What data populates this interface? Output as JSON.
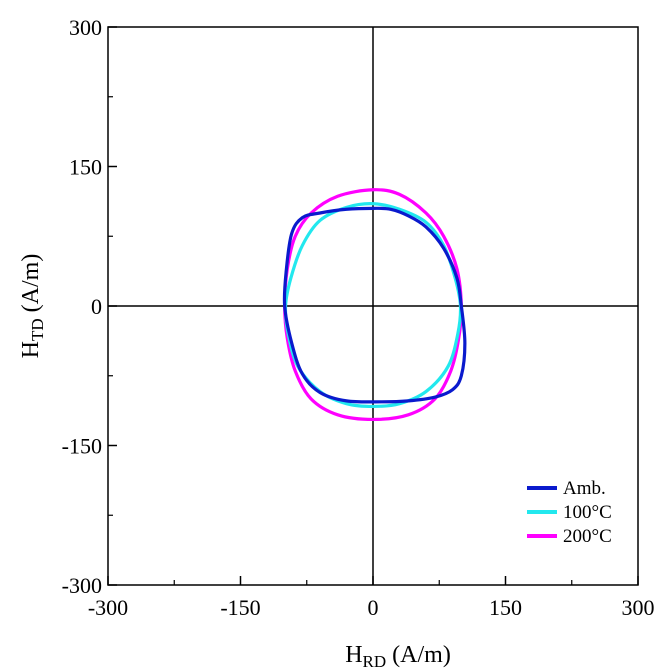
{
  "chart_data": {
    "type": "line",
    "xlabel": {
      "main": "H",
      "sub": "RD",
      "unit": " (A/m)"
    },
    "ylabel": {
      "main": "H",
      "sub": "TD",
      "unit": " (A/m)"
    },
    "xlim": [
      -300,
      300
    ],
    "ylim": [
      -300,
      300
    ],
    "x_ticks": [
      -300,
      -150,
      0,
      150,
      300
    ],
    "y_ticks": [
      300,
      150,
      0,
      -150,
      -300
    ],
    "x_tick_labels": [
      "-300",
      "-150",
      "0",
      "150",
      "300"
    ],
    "y_tick_labels": [
      "300",
      "150",
      "0",
      "-150",
      "-300"
    ],
    "grid": false,
    "zero_lines": true,
    "legend_position": "bottom-right",
    "series": [
      {
        "name": "200°C",
        "color": "#ff00ff",
        "x": [
          0,
          30,
          60,
          80,
          95,
          100,
          97,
          88,
          70,
          40,
          0,
          -40,
          -70,
          -88,
          -97,
          -100,
          -97,
          -88,
          -70,
          -40,
          0
        ],
        "y": [
          125,
          120,
          100,
          75,
          40,
          0,
          -35,
          -70,
          -100,
          -117,
          -122,
          -117,
          -100,
          -70,
          -35,
          0,
          40,
          75,
          100,
          118,
          125
        ]
      },
      {
        "name": "100°C",
        "color": "#22e8ee",
        "x": [
          0,
          30,
          60,
          80,
          93,
          99,
          96,
          85,
          60,
          30,
          0,
          -30,
          -60,
          -85,
          -96,
          -99,
          -93,
          -80,
          -60,
          -30,
          0
        ],
        "y": [
          110,
          104,
          90,
          65,
          30,
          0,
          -30,
          -65,
          -92,
          -105,
          -108,
          -105,
          -92,
          -65,
          -30,
          0,
          30,
          65,
          92,
          106,
          110
        ]
      },
      {
        "name": "Amb.",
        "color": "#0a1acd",
        "x": [
          0,
          20,
          40,
          60,
          80,
          95,
          100,
          104,
          100,
          90,
          70,
          40,
          10,
          -30,
          -60,
          -80,
          -92,
          -100,
          -98,
          -92,
          -80,
          -60,
          -30,
          0
        ],
        "y": [
          105,
          104,
          97,
          85,
          62,
          30,
          0,
          -40,
          -75,
          -90,
          -98,
          -102,
          -103,
          -102,
          -93,
          -73,
          -40,
          0,
          40,
          78,
          95,
          100,
          104,
          105
        ]
      }
    ]
  }
}
